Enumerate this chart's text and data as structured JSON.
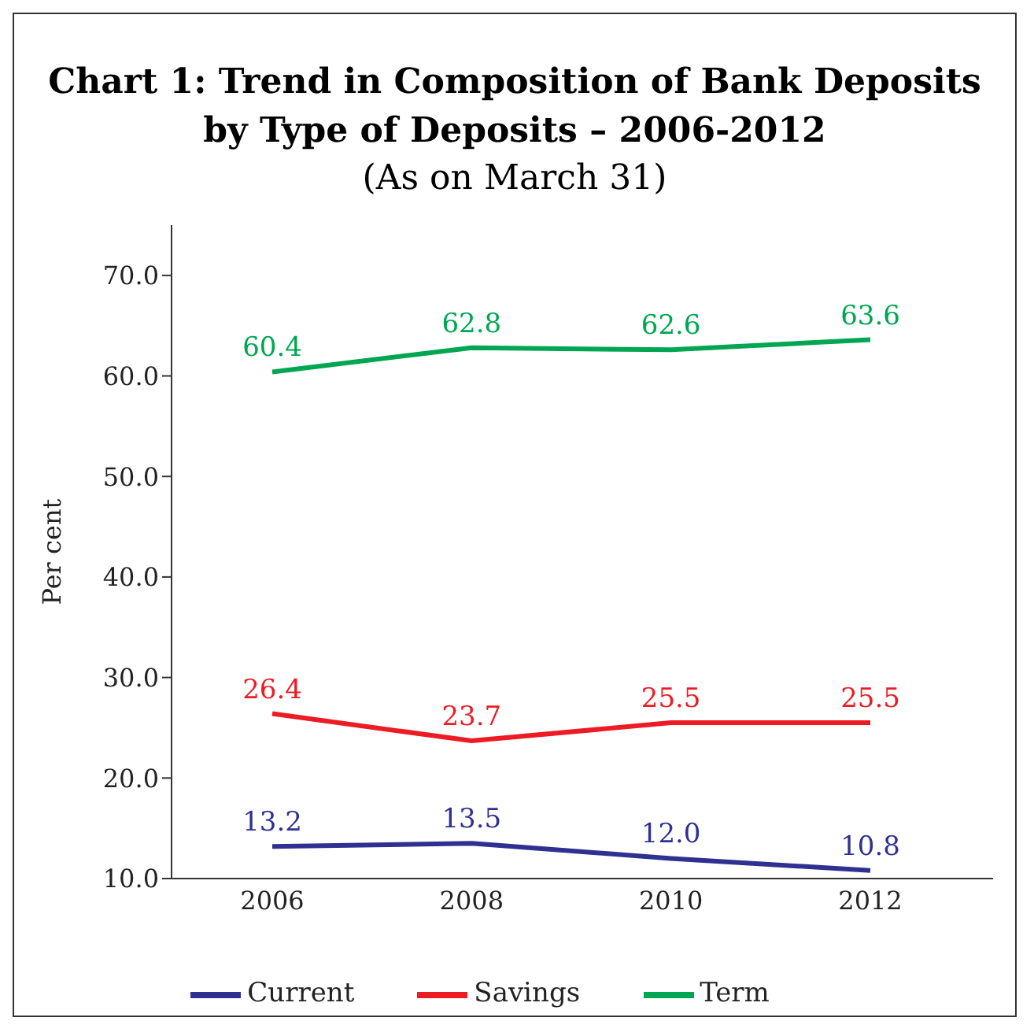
{
  "chart_data": {
    "type": "line",
    "title": "Chart 1: Trend in Composition of Bank Deposits by Type of Deposits – 2006-2012",
    "subtitle": "(As on March 31)",
    "ylabel": "Per cent",
    "categories": [
      "2006",
      "2008",
      "2010",
      "2012"
    ],
    "series": [
      {
        "name": "Current",
        "color": "#2e3192",
        "values": [
          13.2,
          13.5,
          12.0,
          10.8
        ],
        "value_labels": [
          "13.2",
          "13.5",
          "12.0",
          "10.8"
        ]
      },
      {
        "name": "Savings",
        "color": "#ed1c24",
        "values": [
          26.4,
          23.7,
          25.5,
          25.5
        ],
        "value_labels": [
          "26.4",
          "23.7",
          "25.5",
          "25.5"
        ]
      },
      {
        "name": "Term",
        "color": "#00a651",
        "values": [
          60.4,
          62.8,
          62.6,
          63.6
        ],
        "value_labels": [
          "60.4",
          "62.8",
          "62.6",
          "63.6"
        ]
      }
    ],
    "ylim": [
      10,
      75
    ],
    "yticks": [
      {
        "value": 10,
        "label": "10.0"
      },
      {
        "value": 20,
        "label": "20.0"
      },
      {
        "value": 30,
        "label": "30.0"
      },
      {
        "value": 40,
        "label": "40.0"
      },
      {
        "value": 50,
        "label": "50.0"
      },
      {
        "value": 60,
        "label": "60.0"
      },
      {
        "value": 70,
        "label": "70.0"
      }
    ],
    "grid": false,
    "legend": "bottom",
    "marker": "none",
    "line_style": "solid"
  }
}
